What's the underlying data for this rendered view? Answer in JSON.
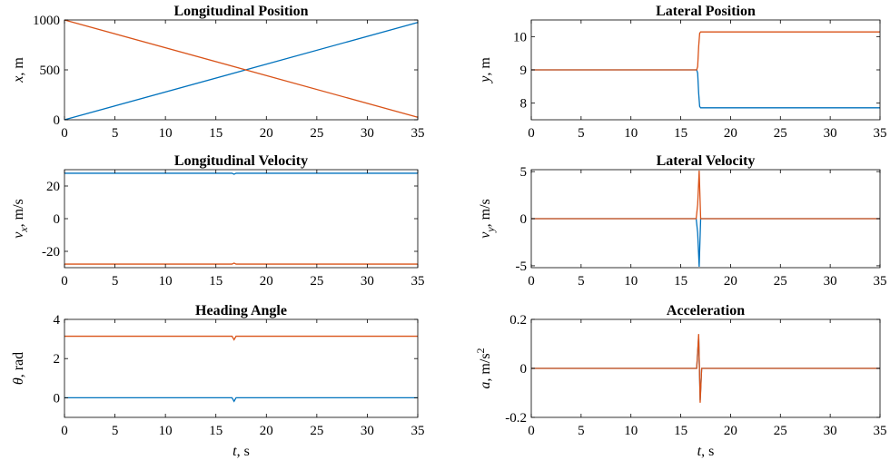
{
  "colors": {
    "series1": "#0072BD",
    "series2": "#D95319",
    "axis": "#000000"
  },
  "shared": {
    "xlabel_sym": "t",
    "xlabel_unit": "s"
  },
  "chart_data": [
    {
      "type": "line",
      "title": "Longitudinal Position",
      "ylabel_sym": "x",
      "ylabel_sub": "",
      "ylabel_unit": "m",
      "ylabel_sup": "",
      "xlim": [
        0,
        35
      ],
      "ylim": [
        0,
        1000
      ],
      "xticks": [
        "0",
        "5",
        "10",
        "15",
        "20",
        "25",
        "30",
        "35"
      ],
      "yticks": [
        {
          "v": 0,
          "t": "0"
        },
        {
          "v": 500,
          "t": "500"
        },
        {
          "v": 1000,
          "t": "1000"
        }
      ],
      "series": [
        {
          "color": "#0072BD",
          "x": [
            0,
            35
          ],
          "y": [
            0,
            975
          ]
        },
        {
          "color": "#D95319",
          "x": [
            0,
            35
          ],
          "y": [
            1000,
            25
          ]
        }
      ]
    },
    {
      "type": "line",
      "title": "Lateral Position",
      "ylabel_sym": "y",
      "ylabel_sub": "",
      "ylabel_unit": "m",
      "ylabel_sup": "",
      "xlim": [
        0,
        35
      ],
      "ylim": [
        7.5,
        10.5
      ],
      "xticks": [
        "0",
        "5",
        "10",
        "15",
        "20",
        "25",
        "30",
        "35"
      ],
      "yticks": [
        {
          "v": 8,
          "t": "8"
        },
        {
          "v": 9,
          "t": "9"
        },
        {
          "v": 10,
          "t": "10"
        }
      ],
      "series": [
        {
          "color": "#0072BD",
          "x": [
            0,
            16.6,
            16.7,
            16.8,
            16.9,
            17.0,
            35
          ],
          "y": [
            9,
            9,
            8.9,
            8.3,
            7.9,
            7.86,
            7.86
          ]
        },
        {
          "color": "#D95319",
          "x": [
            0,
            16.6,
            16.7,
            16.8,
            16.9,
            17.0,
            35
          ],
          "y": [
            9,
            9,
            9.1,
            9.7,
            10.1,
            10.14,
            10.14
          ]
        }
      ]
    },
    {
      "type": "line",
      "title": "Longitudinal Velocity",
      "ylabel_sym": "v",
      "ylabel_sub": "x",
      "ylabel_unit": "m/s",
      "ylabel_sup": "",
      "xlim": [
        0,
        35
      ],
      "ylim": [
        -30,
        30
      ],
      "xticks": [
        "0",
        "5",
        "10",
        "15",
        "20",
        "25",
        "30",
        "35"
      ],
      "yticks": [
        {
          "v": -20,
          "t": "-20"
        },
        {
          "v": 0,
          "t": "0"
        },
        {
          "v": 20,
          "t": "20"
        }
      ],
      "series": [
        {
          "color": "#0072BD",
          "x": [
            0,
            16.6,
            16.8,
            17.0,
            35
          ],
          "y": [
            27.8,
            27.8,
            27.2,
            27.8,
            27.8
          ]
        },
        {
          "color": "#D95319",
          "x": [
            0,
            16.6,
            16.8,
            17.0,
            35
          ],
          "y": [
            -27.8,
            -27.8,
            -27.2,
            -27.8,
            -27.8
          ]
        }
      ]
    },
    {
      "type": "line",
      "title": "Lateral Velocity",
      "ylabel_sym": "v",
      "ylabel_sub": "y",
      "ylabel_unit": "m/s",
      "ylabel_sup": "",
      "xlim": [
        0,
        35
      ],
      "ylim": [
        -5.2,
        5.2
      ],
      "xticks": [
        "0",
        "5",
        "10",
        "15",
        "20",
        "25",
        "30",
        "35"
      ],
      "yticks": [
        {
          "v": -5,
          "t": "-5"
        },
        {
          "v": 0,
          "t": "0"
        },
        {
          "v": 5,
          "t": "5"
        }
      ],
      "series": [
        {
          "color": "#0072BD",
          "x": [
            0,
            16.55,
            16.7,
            16.85,
            17.0,
            35
          ],
          "y": [
            0,
            0,
            -1.5,
            -5.1,
            0,
            0
          ]
        },
        {
          "color": "#D95319",
          "x": [
            0,
            16.55,
            16.7,
            16.85,
            17.0,
            35
          ],
          "y": [
            0,
            0,
            1.5,
            5.1,
            0,
            0
          ]
        }
      ]
    },
    {
      "type": "line",
      "title": "Heading Angle",
      "ylabel_sym": "θ",
      "ylabel_sub": "",
      "ylabel_unit": "rad",
      "ylabel_sup": "",
      "xlim": [
        0,
        35
      ],
      "ylim": [
        -1,
        4
      ],
      "xticks": [
        "0",
        "5",
        "10",
        "15",
        "20",
        "25",
        "30",
        "35"
      ],
      "yticks": [
        {
          "v": 0,
          "t": "0"
        },
        {
          "v": 2,
          "t": "2"
        },
        {
          "v": 4,
          "t": "4"
        }
      ],
      "series": [
        {
          "color": "#0072BD",
          "x": [
            0,
            16.6,
            16.8,
            17.0,
            35
          ],
          "y": [
            0,
            0,
            -0.18,
            0,
            0
          ]
        },
        {
          "color": "#D95319",
          "x": [
            0,
            16.6,
            16.8,
            17.0,
            35
          ],
          "y": [
            3.14,
            3.14,
            2.96,
            3.14,
            3.14
          ]
        }
      ]
    },
    {
      "type": "line",
      "title": "Acceleration",
      "ylabel_sym": "a",
      "ylabel_sub": "",
      "ylabel_unit": "m/s",
      "ylabel_sup": "2",
      "xlim": [
        0,
        35
      ],
      "ylim": [
        -0.2,
        0.2
      ],
      "xticks": [
        "0",
        "5",
        "10",
        "15",
        "20",
        "25",
        "30",
        "35"
      ],
      "yticks": [
        {
          "v": -0.2,
          "t": "-0.2"
        },
        {
          "v": 0,
          "t": "0"
        },
        {
          "v": 0.2,
          "t": "0.2"
        }
      ],
      "series": [
        {
          "color": "#0072BD",
          "x": [
            0,
            16.6,
            16.8,
            16.95,
            17.1,
            35
          ],
          "y": [
            0,
            0,
            0.13,
            -0.13,
            0,
            0
          ]
        },
        {
          "color": "#D95319",
          "x": [
            0,
            16.6,
            16.8,
            16.95,
            17.1,
            35
          ],
          "y": [
            0,
            0,
            0.14,
            -0.14,
            0,
            0
          ]
        }
      ]
    }
  ]
}
